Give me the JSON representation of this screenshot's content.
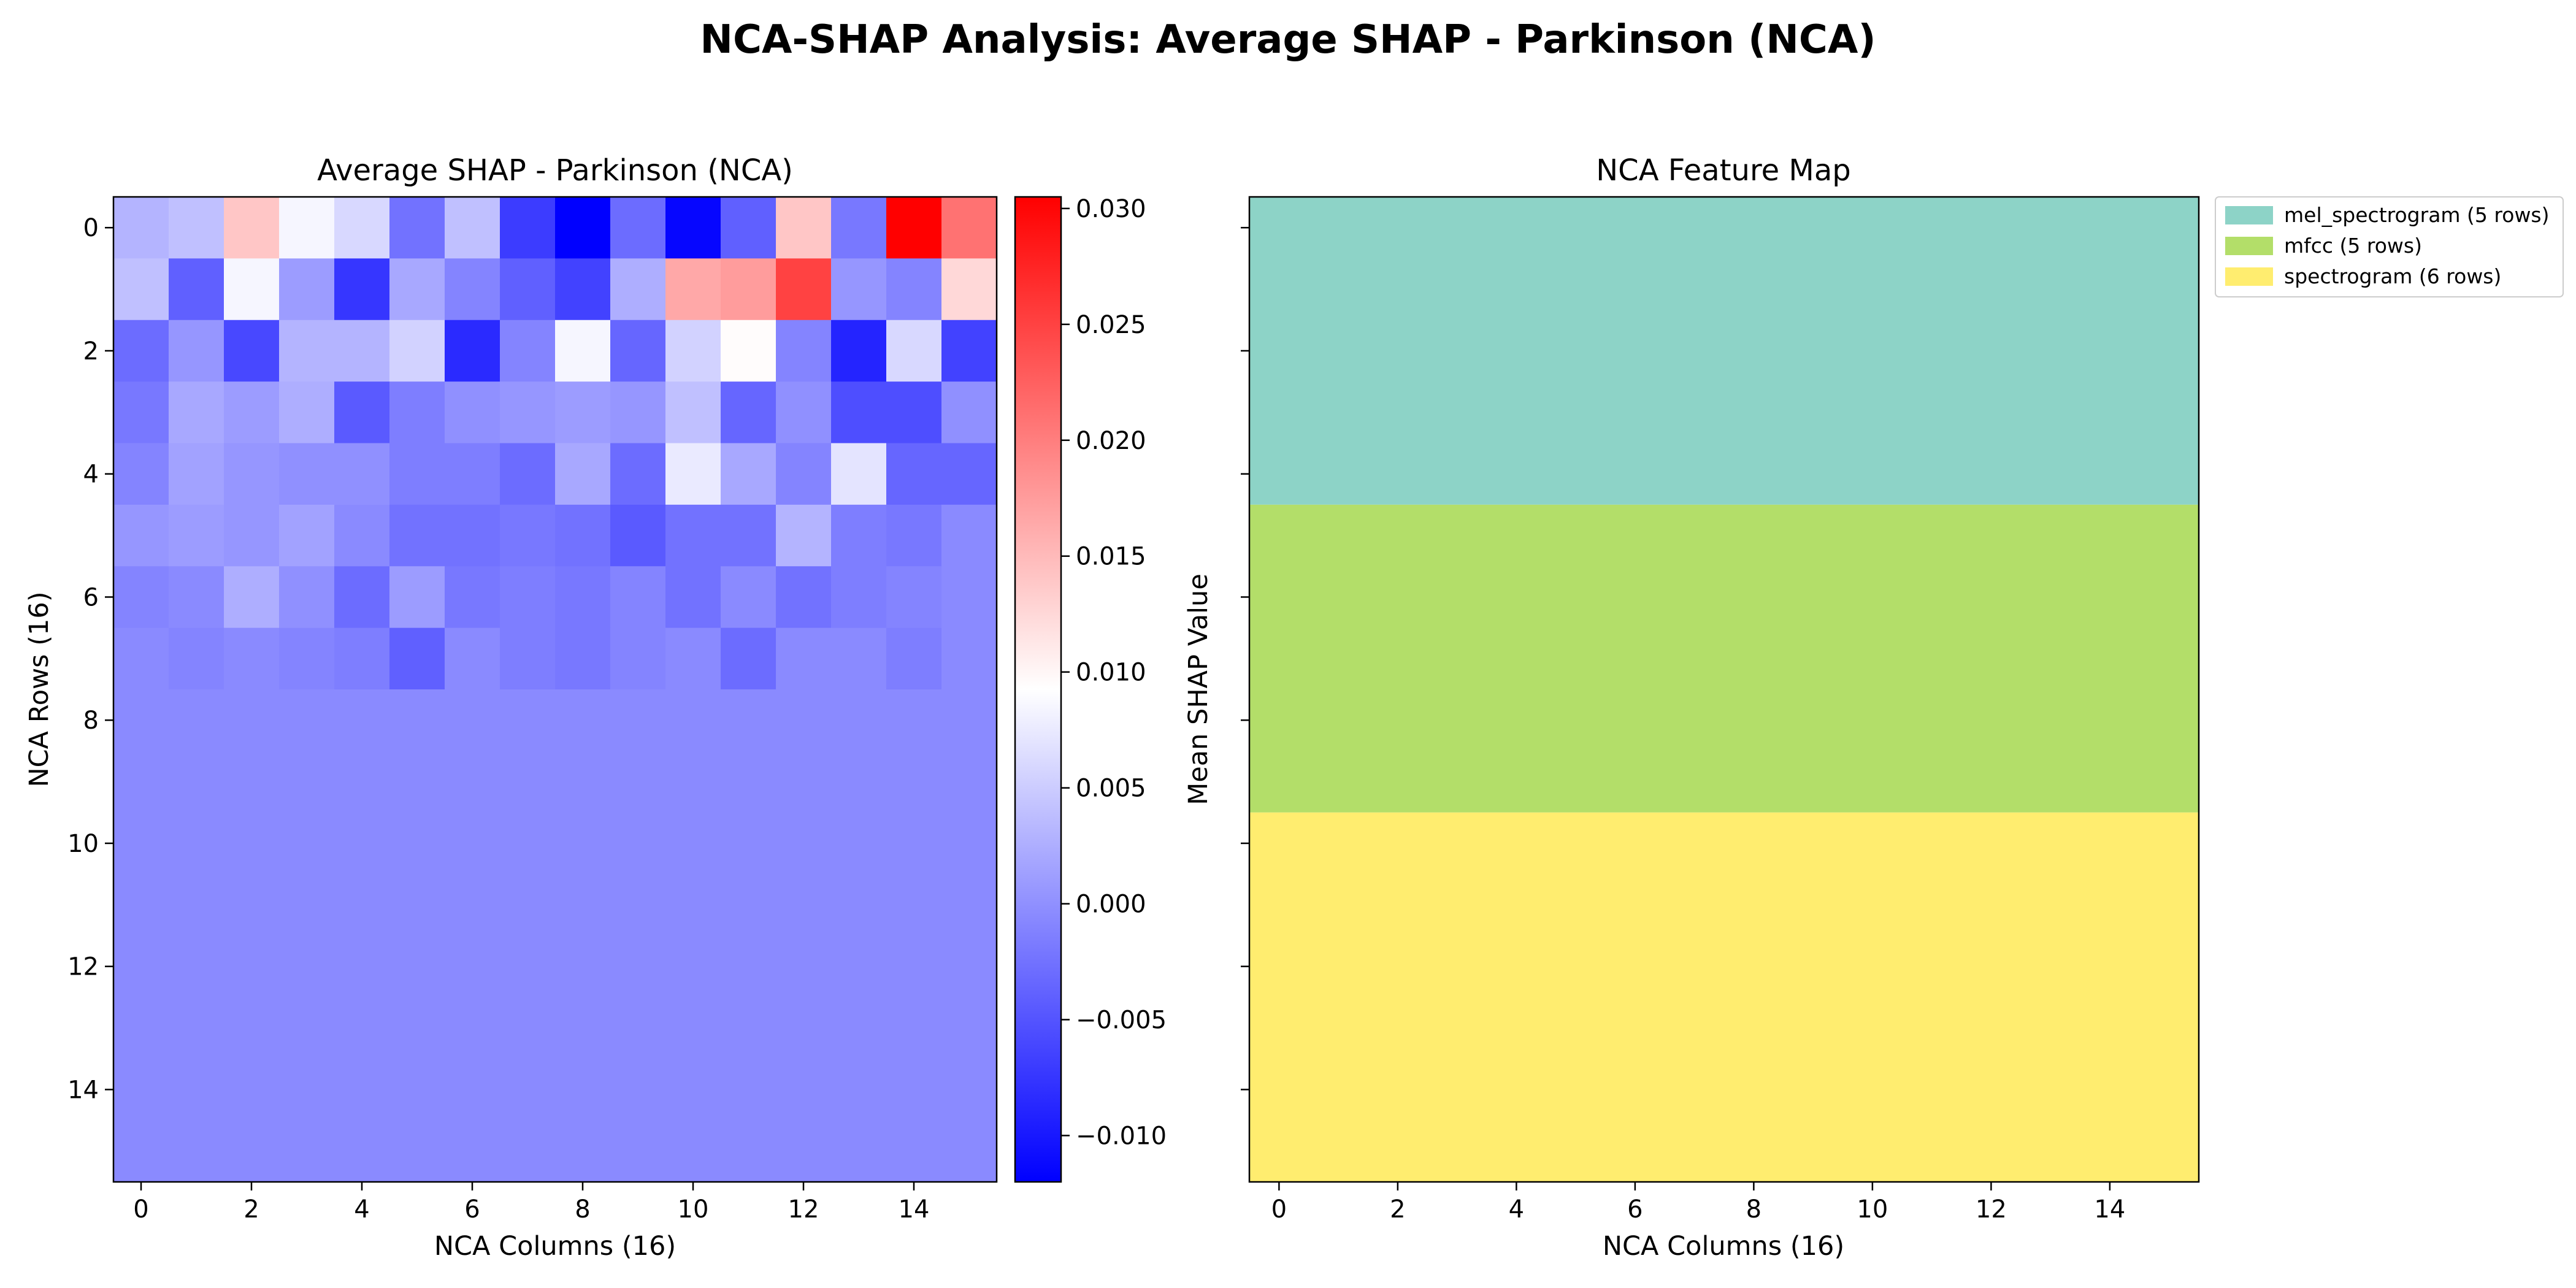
{
  "figure": {
    "suptitle": "NCA-SHAP Analysis: Average SHAP - Parkinson (NCA)"
  },
  "chart_data": [
    {
      "type": "heatmap",
      "title": "Average SHAP - Parkinson (NCA)",
      "xlabel": "NCA Columns (16)",
      "ylabel": "NCA Rows (16)",
      "x_ticks": [
        "0",
        "2",
        "4",
        "6",
        "8",
        "10",
        "12",
        "14"
      ],
      "y_ticks": [
        "0",
        "2",
        "4",
        "6",
        "8",
        "10",
        "12",
        "14"
      ],
      "colormap": "bwr",
      "vmin": -0.012,
      "vmax": 0.0305,
      "values": [
        [
          0.003,
          0.004,
          0.014,
          0.0085,
          0.006,
          -0.0025,
          0.004,
          -0.007,
          -0.012,
          -0.003,
          -0.0115,
          -0.004,
          0.014,
          -0.002,
          0.0305,
          0.021
        ],
        [
          0.004,
          -0.004,
          0.0085,
          0.001,
          -0.0075,
          0.002,
          -0.001,
          -0.004,
          -0.0065,
          0.0025,
          0.0165,
          0.0175,
          0.025,
          0.0005,
          -0.001,
          0.0125
        ],
        [
          -0.003,
          0.0005,
          -0.006,
          0.003,
          0.003,
          0.0055,
          -0.0085,
          -0.001,
          0.0085,
          -0.0035,
          0.0055,
          0.0095,
          -0.001,
          -0.009,
          0.006,
          -0.0065
        ],
        [
          -0.002,
          0.002,
          0.001,
          0.0025,
          -0.0045,
          -0.0015,
          0.0,
          0.0005,
          0.001,
          0.0005,
          0.004,
          -0.0035,
          0.0,
          -0.0055,
          -0.0055,
          0.0
        ],
        [
          -0.001,
          0.0015,
          0.0005,
          0.0,
          0.0,
          -0.0015,
          -0.0015,
          -0.003,
          0.002,
          -0.003,
          0.0075,
          0.002,
          -0.001,
          0.007,
          -0.0035,
          -0.0035
        ],
        [
          0.0005,
          0.001,
          0.0005,
          0.0015,
          -0.0005,
          -0.0025,
          -0.0025,
          -0.002,
          -0.0025,
          -0.0045,
          -0.0025,
          -0.0025,
          0.003,
          -0.0015,
          -0.002,
          -0.0005
        ],
        [
          -0.001,
          -0.0005,
          0.0025,
          0.0,
          -0.003,
          0.001,
          -0.002,
          -0.0015,
          -0.002,
          -0.001,
          -0.0025,
          -0.0005,
          -0.0025,
          -0.0015,
          -0.001,
          -0.0005
        ],
        [
          -0.0005,
          -0.001,
          -0.0005,
          -0.001,
          -0.0015,
          -0.004,
          -0.0005,
          -0.0015,
          -0.002,
          -0.001,
          -0.0005,
          -0.003,
          -0.0005,
          -0.0005,
          -0.0015,
          -0.0005
        ],
        [
          -0.0005,
          -0.0005,
          -0.0005,
          -0.0005,
          -0.0005,
          -0.0005,
          -0.0005,
          -0.0005,
          -0.0005,
          -0.0005,
          -0.0005,
          -0.0005,
          -0.0005,
          -0.0005,
          -0.0005,
          -0.0005
        ],
        [
          -0.0005,
          -0.0005,
          -0.0005,
          -0.0005,
          -0.0005,
          -0.0005,
          -0.0005,
          -0.0005,
          -0.0005,
          -0.0005,
          -0.0005,
          -0.0005,
          -0.0005,
          -0.0005,
          -0.0005,
          -0.0005
        ],
        [
          -0.0005,
          -0.0005,
          -0.0005,
          -0.0005,
          -0.0005,
          -0.0005,
          -0.0005,
          -0.0005,
          -0.0005,
          -0.0005,
          -0.0005,
          -0.0005,
          -0.0005,
          -0.0005,
          -0.0005,
          -0.0005
        ],
        [
          -0.0005,
          -0.0005,
          -0.0005,
          -0.0005,
          -0.0005,
          -0.0005,
          -0.0005,
          -0.0005,
          -0.0005,
          -0.0005,
          -0.0005,
          -0.0005,
          -0.0005,
          -0.0005,
          -0.0005,
          -0.0005
        ],
        [
          -0.0005,
          -0.0005,
          -0.0005,
          -0.0005,
          -0.0005,
          -0.0005,
          -0.0005,
          -0.0005,
          -0.0005,
          -0.0005,
          -0.0005,
          -0.0005,
          -0.0005,
          -0.0005,
          -0.0005,
          -0.0005
        ],
        [
          -0.0005,
          -0.0005,
          -0.0005,
          -0.0005,
          -0.0005,
          -0.0005,
          -0.0005,
          -0.0005,
          -0.0005,
          -0.0005,
          -0.0005,
          -0.0005,
          -0.0005,
          -0.0005,
          -0.0005,
          -0.0005
        ],
        [
          -0.0005,
          -0.0005,
          -0.0005,
          -0.0005,
          -0.0005,
          -0.0005,
          -0.0005,
          -0.0005,
          -0.0005,
          -0.0005,
          -0.0005,
          -0.0005,
          -0.0005,
          -0.0005,
          -0.0005,
          -0.0005
        ],
        [
          -0.0005,
          -0.0005,
          -0.0005,
          -0.0005,
          -0.0005,
          -0.0005,
          -0.0005,
          -0.0005,
          -0.0005,
          -0.0005,
          -0.0005,
          -0.0005,
          -0.0005,
          -0.0005,
          -0.0005,
          -0.0005
        ]
      ],
      "colorbar": {
        "ticks": [
          "-0.010",
          "-0.005",
          "0.000",
          "0.005",
          "0.010",
          "0.015",
          "0.020",
          "0.025",
          "0.030"
        ]
      }
    },
    {
      "type": "heatmap",
      "title": "NCA Feature Map",
      "xlabel": "NCA Columns (16)",
      "ylabel": "Mean SHAP Value",
      "x_ticks": [
        "0",
        "2",
        "4",
        "6",
        "8",
        "10",
        "12",
        "14"
      ],
      "y_ticks_shown": false,
      "columns": 16,
      "rows": 16,
      "regions": [
        {
          "label": "mel_spectrogram (5 rows)",
          "rows": 5,
          "color": "#8dd3c7"
        },
        {
          "label": "mfcc (5 rows)",
          "rows": 5,
          "color": "#b3de69"
        },
        {
          "label": "spectrogram (6 rows)",
          "rows": 6,
          "color": "#ffed6f"
        }
      ],
      "legend_position": "outside upper right"
    }
  ]
}
